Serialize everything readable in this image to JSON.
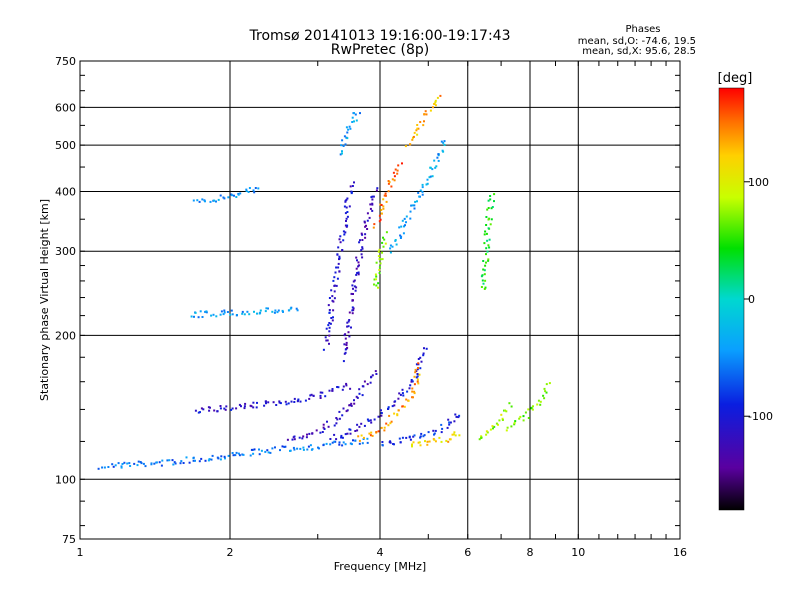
{
  "chart_data": {
    "type": "scatter",
    "title": "Tromsø 20141013 19:16:00-19:17:43",
    "subtitle": "RwPretec (8p)",
    "xlabel": "Frequency [MHz]",
    "ylabel": "Stationary phase Virtual Height [km]",
    "x_scale": "log",
    "y_scale": "log",
    "xlim": [
      1,
      16
    ],
    "ylim": [
      75,
      750
    ],
    "x_ticks": [
      1,
      2,
      4,
      6,
      8,
      10,
      16
    ],
    "y_ticks": [
      75,
      100,
      200,
      300,
      400,
      500,
      600,
      750
    ],
    "grid": true,
    "phase_header": "Phases",
    "stats": [
      "mean, sd,O: -74.6, 19.5",
      "mean, sd,X: 95.6, 28.5"
    ],
    "colorbar": {
      "label": "[deg]",
      "range": [
        -180,
        180
      ],
      "ticks": [
        100,
        0,
        -100
      ]
    },
    "traces": [
      {
        "x": [
          1.1,
          1.5,
          1.9,
          2.3,
          2.8,
          3.3,
          3.8
        ],
        "y": [
          107,
          109,
          112,
          115,
          117,
          119,
          121
        ],
        "phase": -60
      },
      {
        "x": [
          1.65,
          2.0,
          2.4,
          2.75
        ],
        "y": [
          222,
          224,
          226,
          228
        ],
        "phase": -40
      },
      {
        "x": [
          1.7,
          1.9,
          2.1,
          2.3
        ],
        "y": [
          380,
          390,
          400,
          408
        ],
        "phase": -45
      },
      {
        "x": [
          1.7,
          2.0,
          2.5,
          3.0,
          3.5
        ],
        "y": [
          140,
          142,
          145,
          150,
          158
        ],
        "phase": -110
      },
      {
        "x": [
          2.6,
          3.0,
          3.3,
          3.6,
          3.9
        ],
        "y": [
          122,
          126,
          135,
          150,
          170
        ],
        "phase": -115
      },
      {
        "x": [
          3.2,
          3.5,
          3.8,
          4.1,
          4.4,
          4.7,
          4.9
        ],
        "y": [
          122,
          127,
          133,
          141,
          150,
          165,
          190
        ],
        "phase": -105
      },
      {
        "x": [
          3.6,
          4.0,
          4.3,
          4.6,
          4.8
        ],
        "y": [
          122,
          128,
          138,
          150,
          175
        ],
        "phase": 140
      },
      {
        "x": [
          4.0,
          4.4,
          4.8,
          5.2,
          5.5,
          5.8
        ],
        "y": [
          119,
          121,
          124,
          127,
          132,
          138
        ],
        "phase": -90
      },
      {
        "x": [
          4.6,
          5.0,
          5.4,
          5.8
        ],
        "y": [
          118,
          120,
          122,
          126
        ],
        "phase": 120
      },
      {
        "x": [
          3.1,
          3.2,
          3.3,
          3.4,
          3.5
        ],
        "y": [
          190,
          240,
          300,
          360,
          420
        ],
        "phase": -110
      },
      {
        "x": [
          3.35,
          3.5,
          3.6,
          3.75,
          3.9
        ],
        "y": [
          180,
          230,
          290,
          350,
          410
        ],
        "phase": -120
      },
      {
        "x": [
          3.3,
          3.45,
          3.6
        ],
        "y": [
          480,
          540,
          600
        ],
        "phase": -40
      },
      {
        "x": [
          3.9,
          4.0,
          4.1
        ],
        "y": [
          250,
          300,
          330
        ],
        "phase": 70
      },
      {
        "x": [
          3.9,
          4.05,
          4.2,
          4.4
        ],
        "y": [
          340,
          380,
          420,
          460
        ],
        "phase": 150
      },
      {
        "x": [
          4.2,
          4.5,
          4.8,
          5.1,
          5.4
        ],
        "y": [
          300,
          350,
          400,
          450,
          520
        ],
        "phase": -40
      },
      {
        "x": [
          4.5,
          4.7,
          4.9,
          5.1,
          5.3
        ],
        "y": [
          500,
          540,
          580,
          610,
          640
        ],
        "phase": 130
      },
      {
        "x": [
          6.3,
          6.5,
          6.7,
          6.9,
          7.1,
          7.3
        ],
        "y": [
          122,
          125,
          128,
          133,
          138,
          145
        ],
        "phase": 80
      },
      {
        "x": [
          7.2,
          7.6,
          8.0,
          8.4,
          8.7
        ],
        "y": [
          128,
          133,
          140,
          148,
          160
        ],
        "phase": 70
      },
      {
        "x": [
          6.4,
          6.5,
          6.6,
          6.7
        ],
        "y": [
          250,
          300,
          360,
          400
        ],
        "phase": 40
      }
    ]
  }
}
